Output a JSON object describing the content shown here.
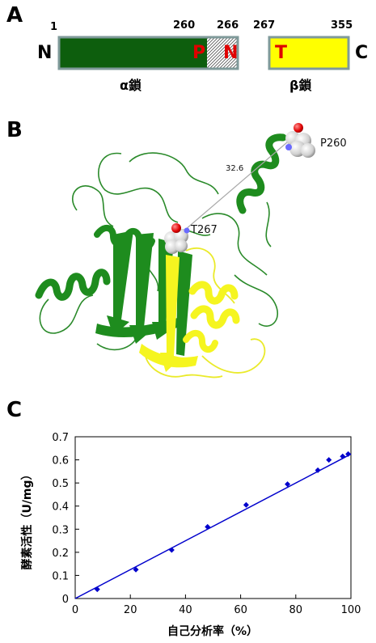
{
  "panels": {
    "a": "A",
    "b": "B",
    "c": "C"
  },
  "panel_a": {
    "n_terminus": "N",
    "c_terminus": "C",
    "ticks": [
      "1",
      "260",
      "266",
      "267",
      "355"
    ],
    "res_p": "P",
    "res_n": "N",
    "res_t": "T",
    "alpha_label": "α鎖",
    "beta_label": "β鎖",
    "colors": {
      "alpha": "#0d5e0d",
      "beta": "#ffff00",
      "border": "#7f9a9a",
      "residue": "#e00000"
    }
  },
  "panel_b": {
    "label_p260": "P260",
    "label_t267": "T267",
    "distance": "32.6"
  },
  "chart_data": {
    "type": "scatter",
    "xlabel": "自己分析率（%）",
    "ylabel": "酵素活性（U/mg）",
    "xlim": [
      0,
      100
    ],
    "ylim": [
      0,
      0.7
    ],
    "xticks": [
      "0",
      "20",
      "40",
      "60",
      "80",
      "100"
    ],
    "yticks": [
      "0",
      "0.1",
      "0.2",
      "0.3",
      "0.4",
      "0.5",
      "0.6",
      "0.7"
    ],
    "x": [
      8,
      22,
      35,
      48,
      62,
      77,
      88,
      92,
      97,
      99
    ],
    "y": [
      0.04,
      0.125,
      0.21,
      0.31,
      0.405,
      0.495,
      0.555,
      0.6,
      0.615,
      0.625
    ],
    "fit_line": {
      "x": [
        0,
        100
      ],
      "y": [
        0,
        0.625
      ]
    },
    "color": "#0000cc",
    "grid": false
  }
}
